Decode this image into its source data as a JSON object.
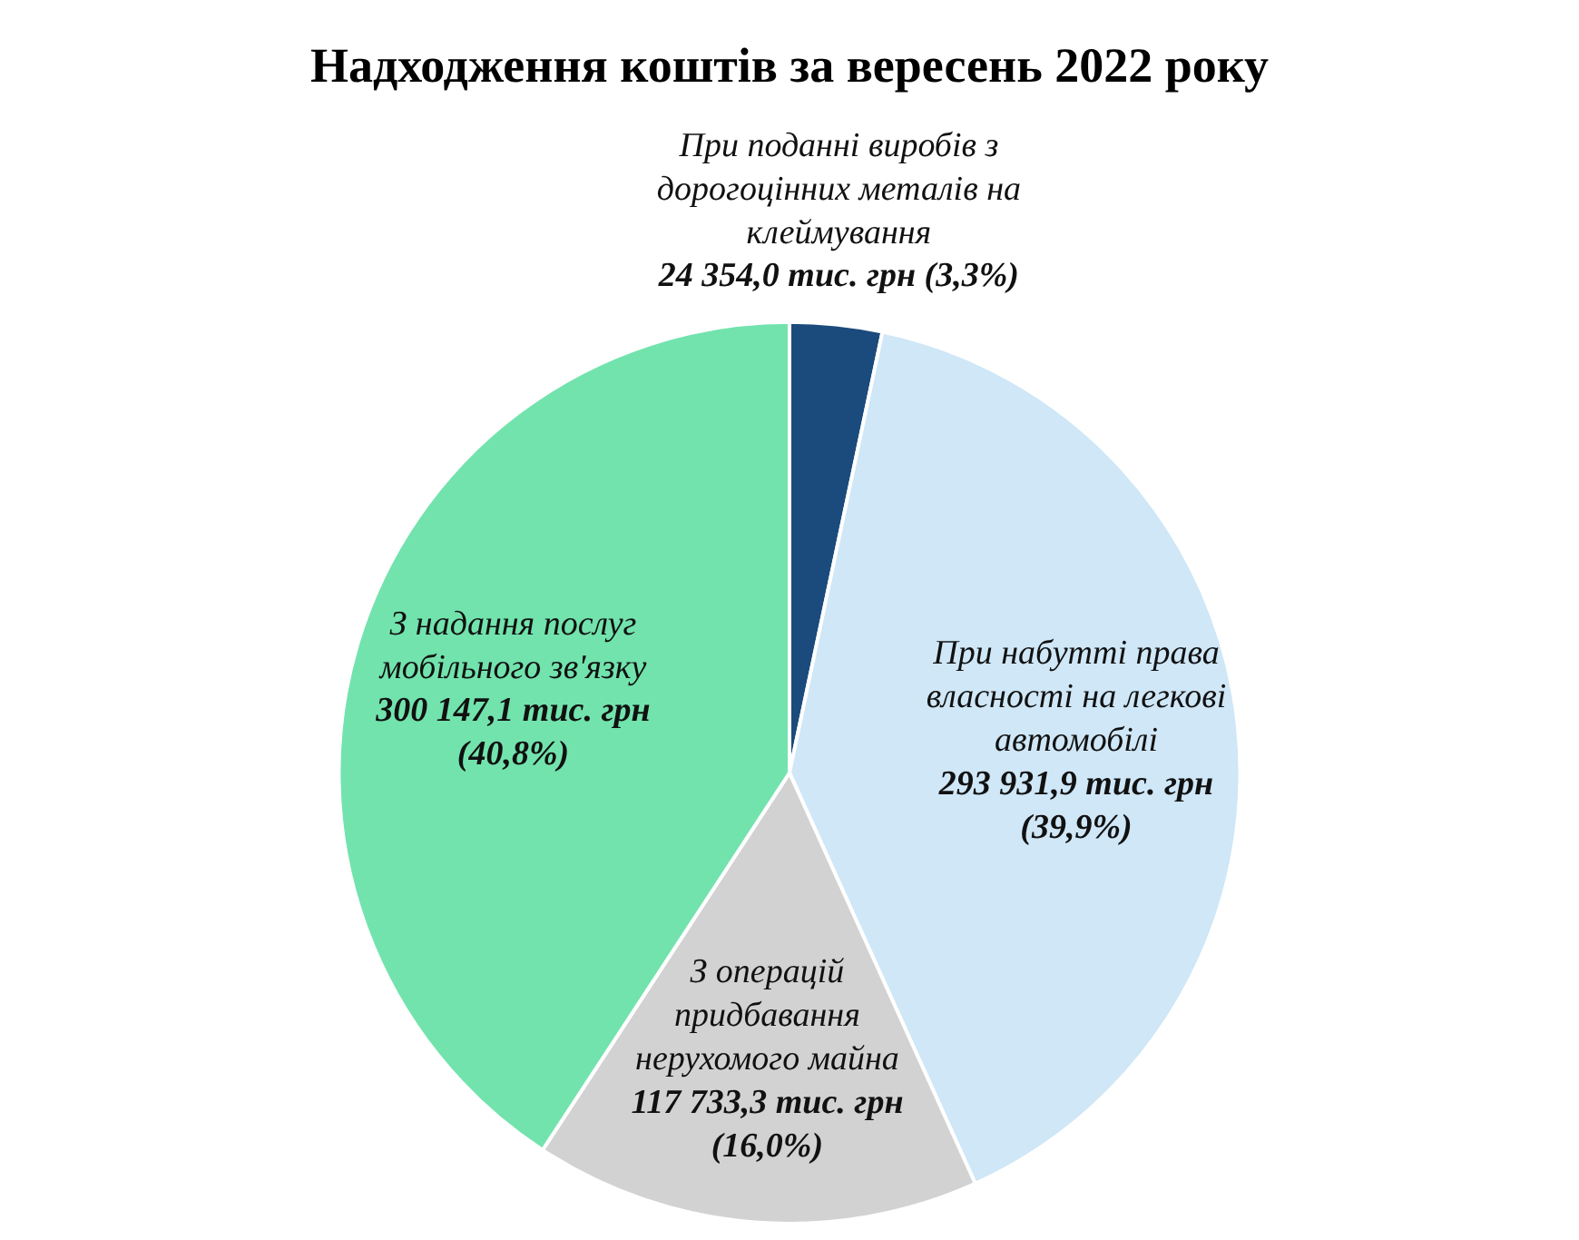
{
  "chart_data": {
    "type": "pie",
    "title": "Надходження коштів за вересень 2022 року",
    "categories": [
      "При поданні виробів з дорогоцінних металів на клеймування",
      "При набутті права власності на легкові автомобілі",
      "З операцій придбавання нерухомого майна",
      "З надання послуг мобільного зв'язку"
    ],
    "values": [
      24354.0,
      293931.9,
      117733.3,
      300147.1
    ],
    "value_labels": [
      "24 354,0 тис. грн (3,3%)",
      "293 931,9 тис. грн (39,9%)",
      "117 733,3 тис. грн (16,0%)",
      "300 147,1 тис. грн (40,8%)"
    ],
    "colors": [
      "#1b4b7c",
      "#cfe7f7",
      "#d2d2d2",
      "#72e3ad"
    ]
  }
}
